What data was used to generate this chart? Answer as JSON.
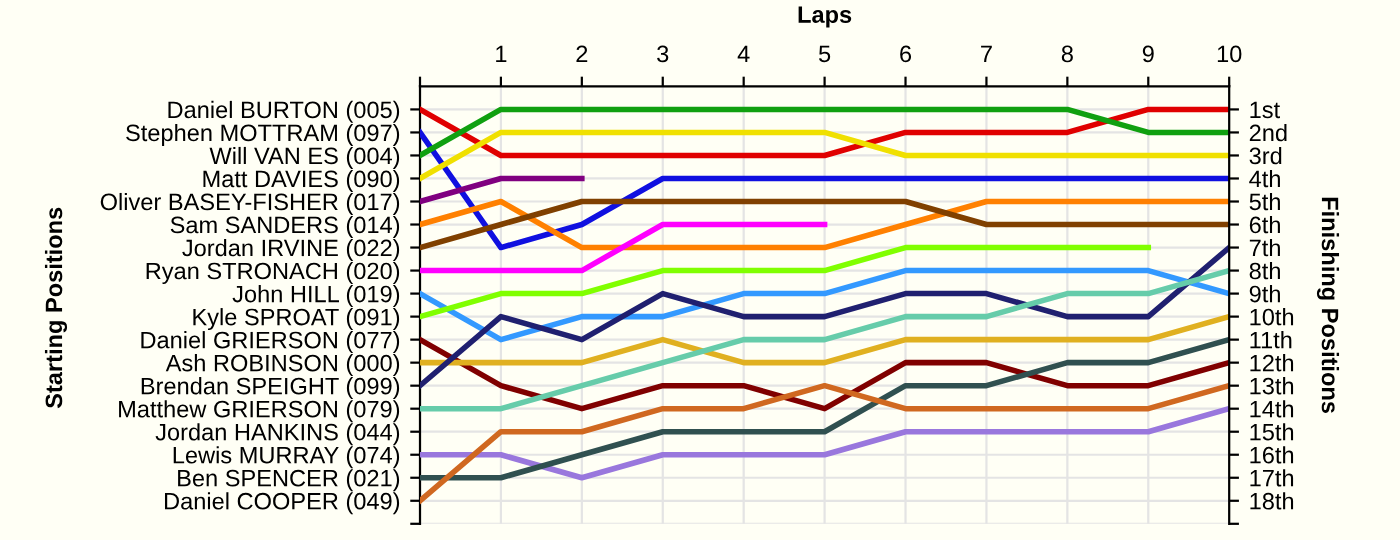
{
  "chart_data": {
    "type": "line",
    "xlabel": "Laps",
    "y2label": "Finishing Positions",
    "x": [
      0,
      1,
      2,
      3,
      4,
      5,
      6,
      7,
      8,
      9,
      10
    ],
    "xlim": [
      0,
      10
    ],
    "xticks": [
      {
        "value": 0,
        "label": null
      },
      1,
      2,
      3,
      4,
      5,
      6,
      7,
      8,
      9,
      10
    ],
    "y2lim": [
      19,
      0
    ],
    "y2ticks": [
      {
        "value": 1,
        "label": "1st"
      },
      {
        "value": 2,
        "label": "2nd"
      },
      {
        "value": 3,
        "label": "3rd"
      },
      {
        "value": 4,
        "label": "4th"
      },
      {
        "value": 5,
        "label": "5th"
      },
      {
        "value": 6,
        "label": "6th"
      },
      {
        "value": 7,
        "label": "7th"
      },
      {
        "value": 8,
        "label": "8th"
      },
      {
        "value": 9,
        "label": "9th"
      },
      {
        "value": 10,
        "label": "10th"
      },
      {
        "value": 11,
        "label": "11th"
      },
      {
        "value": 12,
        "label": "12th"
      },
      {
        "value": 13,
        "label": "13th"
      },
      {
        "value": 14,
        "label": "14th"
      },
      {
        "value": 15,
        "label": "15th"
      },
      {
        "value": 16,
        "label": "16th"
      },
      {
        "value": 17,
        "label": "17th"
      },
      {
        "value": 18,
        "label": "18th"
      },
      {
        "value": 19,
        "label": null
      }
    ],
    "annotations": [
      "Daniel BURTON (005)",
      "Stephen MOTTRAM (097)",
      "Will VAN ES (004)",
      "Matt DAVIES (090)",
      "Oliver BASEY-FISHER (017)",
      "Sam SANDERS (014)",
      "Jordan IRVINE (022)",
      "Ryan STRONACH (020)",
      "John HILL (019)",
      "Kyle SPROAT (091)",
      "Daniel GRIERSON (077)",
      "Ash ROBINSON (000)",
      "Brendan SPEIGHT (099)",
      "Matthew GRIERSON (079)",
      "Jordan HANKINS (044)",
      "Lewis MURRAY (074)",
      "Ben SPENCER (021)",
      "Daniel COOPER (049)",
      "Starting Positions"
    ],
    "grid": true,
    "marker": "none",
    "line_style": "solid",
    "series": [
      {
        "axis": "y2",
        "color": "#e00000",
        "values": [
          1,
          3,
          3,
          3,
          3,
          3,
          2,
          2,
          2,
          1,
          1
        ]
      },
      {
        "axis": "y2",
        "color": "#1010e0",
        "values": [
          2,
          7,
          6,
          4,
          4,
          4,
          4,
          4,
          4,
          4,
          4
        ]
      },
      {
        "axis": "y2",
        "color": "#10a010",
        "values": [
          3,
          1,
          1,
          1,
          1,
          1,
          1,
          1,
          1,
          2,
          2
        ]
      },
      {
        "axis": "y2",
        "color": "#f0e000",
        "values": [
          4,
          2,
          2,
          2,
          2,
          2,
          3,
          3,
          3,
          3,
          3
        ]
      },
      {
        "axis": "y2",
        "color": "#800080",
        "values": [
          5,
          4,
          4,
          null,
          null,
          null,
          null,
          null,
          null,
          null,
          null
        ]
      },
      {
        "axis": "y2",
        "color": "#ff8000",
        "values": [
          6,
          5,
          7,
          7,
          7,
          7,
          6,
          5,
          5,
          5,
          5
        ]
      },
      {
        "axis": "y2",
        "color": "#804000",
        "values": [
          7,
          6,
          5,
          5,
          5,
          5,
          5,
          6,
          6,
          6,
          6
        ]
      },
      {
        "axis": "y2",
        "color": "#ff00ff",
        "values": [
          8,
          8,
          8,
          6,
          6,
          6,
          null,
          null,
          null,
          null,
          null
        ]
      },
      {
        "axis": "y2",
        "color": "#3399ff",
        "values": [
          9,
          11,
          10,
          10,
          9,
          9,
          8,
          8,
          8,
          8,
          9
        ]
      },
      {
        "axis": "y2",
        "color": "#80ff00",
        "values": [
          10,
          9,
          9,
          8,
          8,
          8,
          7,
          7,
          7,
          7,
          null
        ]
      },
      {
        "axis": "y2",
        "color": "#800000",
        "values": [
          11,
          13,
          14,
          13,
          13,
          14,
          12,
          12,
          13,
          13,
          12
        ]
      },
      {
        "axis": "y2",
        "color": "#e0b020",
        "values": [
          12,
          12,
          12,
          11,
          12,
          12,
          11,
          11,
          11,
          11,
          10
        ]
      },
      {
        "axis": "y2",
        "color": "#202070",
        "values": [
          13,
          10,
          11,
          9,
          10,
          10,
          9,
          9,
          10,
          10,
          7
        ]
      },
      {
        "axis": "y2",
        "color": "#66ccaa",
        "values": [
          14,
          14,
          13,
          12,
          11,
          11,
          10,
          10,
          9,
          9,
          8
        ]
      },
      {
        "axis": "y2",
        "color": "#9977dd",
        "values": [
          16,
          16,
          17,
          16,
          16,
          16,
          15,
          15,
          15,
          15,
          14
        ]
      },
      {
        "axis": "y2",
        "color": "#305050",
        "values": [
          17,
          17,
          16,
          15,
          15,
          15,
          13,
          13,
          12,
          12,
          11
        ]
      },
      {
        "axis": "y2",
        "color": "#d06820",
        "values": [
          18,
          15,
          15,
          14,
          14,
          13,
          14,
          14,
          14,
          14,
          13
        ]
      }
    ]
  }
}
